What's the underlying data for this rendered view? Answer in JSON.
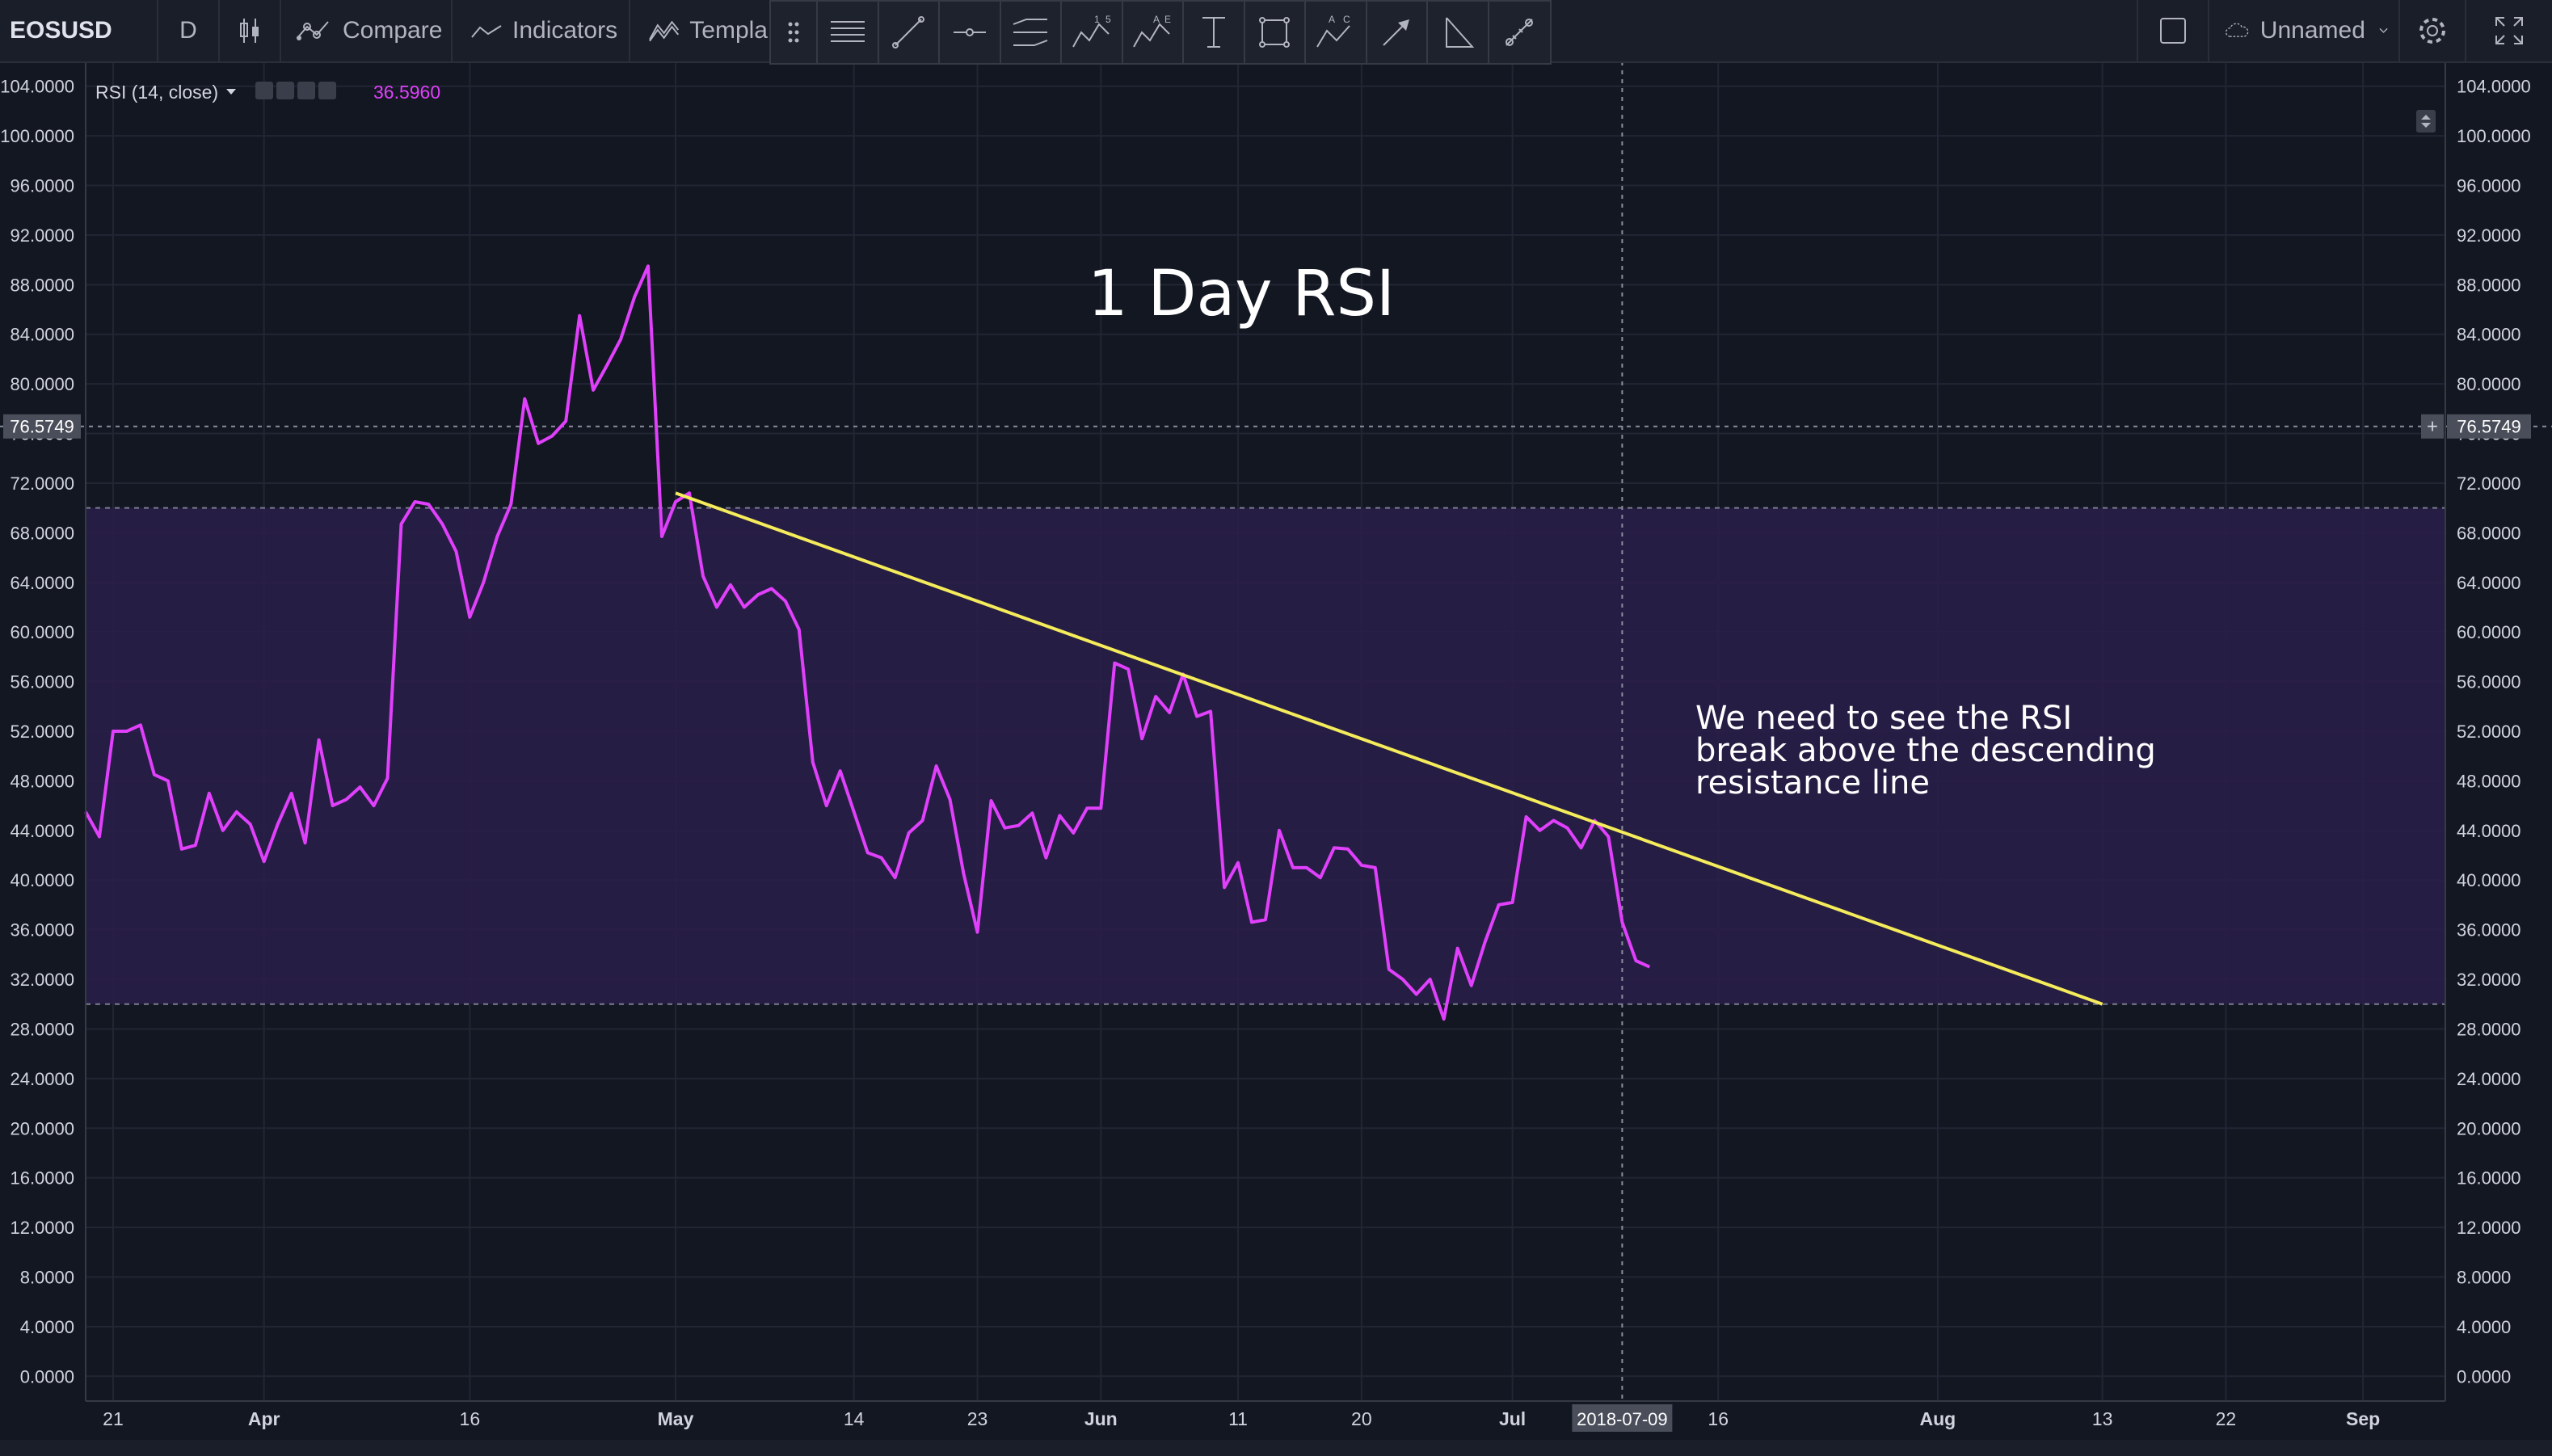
{
  "toolbar": {
    "symbol": "EOSUSD",
    "interval": "D",
    "compare_label": "Compare",
    "indicators_label": "Indicators",
    "templates_label": "Templa",
    "layout_name": "Unnamed",
    "icons": [
      "candles-icon",
      "compare-icon",
      "indicators-icon",
      "templates-icon",
      "square-icon",
      "cloud-icon",
      "gear-icon",
      "fullscreen-icon"
    ]
  },
  "drawing_tools": [
    "drag-handle-icon",
    "horizontal-lines-icon",
    "trend-line-icon",
    "horizontal-ray-icon",
    "parallel-channel-icon",
    "pattern-15-icon",
    "pattern-ae-icon",
    "text-tool-icon",
    "rectangle-icon",
    "pattern-ac-icon",
    "arrow-icon",
    "angle-icon",
    "measure-icon"
  ],
  "legend": {
    "study": "RSI (14, close)",
    "value": "36.5960"
  },
  "crosshair": {
    "price_label": "76.5749",
    "date_label": "2018-07-09"
  },
  "annotations": {
    "title": "1 Day RSI",
    "note": [
      "We need to see the RSI",
      "break above the descending",
      "resistance line"
    ]
  },
  "colors": {
    "background": "#131722",
    "rsi_line": "#e040fb",
    "trend_line": "#f5ec5b",
    "band_fill": "#2a1f4a",
    "legend_value": "#e040fb",
    "grid": "#222634"
  },
  "chart_data": {
    "type": "line",
    "title": "1 Day RSI",
    "xlabel": "",
    "ylabel": "",
    "ylim": [
      -2,
      106
    ],
    "y_ticks": [
      "0.0000",
      "4.0000",
      "8.0000",
      "12.0000",
      "16.0000",
      "20.0000",
      "24.0000",
      "28.0000",
      "32.0000",
      "36.0000",
      "40.0000",
      "44.0000",
      "48.0000",
      "52.0000",
      "56.0000",
      "60.0000",
      "64.0000",
      "68.0000",
      "72.0000",
      "76.0000",
      "80.0000",
      "84.0000",
      "88.0000",
      "92.0000",
      "96.0000",
      "100.0000",
      "104.0000"
    ],
    "x_ticks": [
      {
        "date": "2018-03-21",
        "label": "21"
      },
      {
        "date": "2018-04-01",
        "label": "Apr"
      },
      {
        "date": "2018-04-16",
        "label": "16"
      },
      {
        "date": "2018-05-01",
        "label": "May"
      },
      {
        "date": "2018-05-14",
        "label": "14"
      },
      {
        "date": "2018-05-23",
        "label": "23"
      },
      {
        "date": "2018-06-01",
        "label": "Jun"
      },
      {
        "date": "2018-06-11",
        "label": "11"
      },
      {
        "date": "2018-06-20",
        "label": "20"
      },
      {
        "date": "2018-07-01",
        "label": "Jul"
      },
      {
        "date": "2018-07-16",
        "label": "16"
      },
      {
        "date": "2018-08-01",
        "label": "Aug"
      },
      {
        "date": "2018-08-13",
        "label": "13"
      },
      {
        "date": "2018-08-22",
        "label": "22"
      },
      {
        "date": "2018-09-01",
        "label": "Sep"
      }
    ],
    "xlim": [
      "2018-03-19",
      "2018-09-07"
    ],
    "band": [
      30,
      70
    ],
    "crosshair": {
      "date": "2018-07-09",
      "value": 76.5749
    },
    "trendline": {
      "start": {
        "date": "2018-05-01",
        "value": 71.2
      },
      "end": {
        "date": "2018-08-13",
        "value": 30.0
      }
    },
    "series": [
      {
        "x": [
          "2018-03-19",
          "2018-03-20",
          "2018-03-21",
          "2018-03-22",
          "2018-03-23",
          "2018-03-24",
          "2018-03-25",
          "2018-03-26",
          "2018-03-27",
          "2018-03-28",
          "2018-03-29",
          "2018-03-30",
          "2018-03-31",
          "2018-04-01",
          "2018-04-02",
          "2018-04-03",
          "2018-04-04",
          "2018-04-05",
          "2018-04-06",
          "2018-04-07",
          "2018-04-08",
          "2018-04-09",
          "2018-04-10",
          "2018-04-11",
          "2018-04-12",
          "2018-04-13",
          "2018-04-14",
          "2018-04-15",
          "2018-04-16",
          "2018-04-17",
          "2018-04-18",
          "2018-04-19",
          "2018-04-20",
          "2018-04-21",
          "2018-04-22",
          "2018-04-23",
          "2018-04-24",
          "2018-04-25",
          "2018-04-26",
          "2018-04-27",
          "2018-04-28",
          "2018-04-29",
          "2018-04-30",
          "2018-05-01",
          "2018-05-02",
          "2018-05-03",
          "2018-05-04",
          "2018-05-05",
          "2018-05-06",
          "2018-05-07",
          "2018-05-08",
          "2018-05-09",
          "2018-05-10",
          "2018-05-11",
          "2018-05-12",
          "2018-05-13",
          "2018-05-14",
          "2018-05-15",
          "2018-05-16",
          "2018-05-17",
          "2018-05-18",
          "2018-05-19",
          "2018-05-20",
          "2018-05-21",
          "2018-05-22",
          "2018-05-23",
          "2018-05-24",
          "2018-05-25",
          "2018-05-26",
          "2018-05-27",
          "2018-05-28",
          "2018-05-29",
          "2018-05-30",
          "2018-05-31",
          "2018-06-01",
          "2018-06-02",
          "2018-06-03",
          "2018-06-04",
          "2018-06-05",
          "2018-06-06",
          "2018-06-07",
          "2018-06-08",
          "2018-06-09",
          "2018-06-10",
          "2018-06-11",
          "2018-06-12",
          "2018-06-13",
          "2018-06-14",
          "2018-06-15",
          "2018-06-16",
          "2018-06-17",
          "2018-06-18",
          "2018-06-19",
          "2018-06-20",
          "2018-06-21",
          "2018-06-22",
          "2018-06-23",
          "2018-06-24",
          "2018-06-25",
          "2018-06-26",
          "2018-06-27",
          "2018-06-28",
          "2018-06-29",
          "2018-06-30",
          "2018-07-01",
          "2018-07-02",
          "2018-07-03",
          "2018-07-04",
          "2018-07-05",
          "2018-07-06",
          "2018-07-07",
          "2018-07-08",
          "2018-07-09",
          "2018-07-10",
          "2018-07-11"
        ],
        "values": [
          45.5,
          43.5,
          52.0,
          52.0,
          52.5,
          48.5,
          48.0,
          42.5,
          42.8,
          47.0,
          44.0,
          45.5,
          44.5,
          41.5,
          44.5,
          47.0,
          43.0,
          51.3,
          46.0,
          46.5,
          47.5,
          46.0,
          48.2,
          68.7,
          70.5,
          70.3,
          68.7,
          66.5,
          61.2,
          64.0,
          67.7,
          70.3,
          78.8,
          75.2,
          75.8,
          77.0,
          85.5,
          79.5,
          81.5,
          83.6,
          87.0,
          89.5,
          67.7,
          70.5,
          71.2,
          64.5,
          62.0,
          63.8,
          62.0,
          63.0,
          63.5,
          62.5,
          60.2,
          49.5,
          46.0,
          48.8,
          45.5,
          42.2,
          41.8,
          40.2,
          43.8,
          44.8,
          49.2,
          46.5,
          40.5,
          35.8,
          46.4,
          44.2,
          44.4,
          45.4,
          41.8,
          45.2,
          43.8,
          45.8,
          45.8,
          57.5,
          57.0,
          51.4,
          54.8,
          53.5,
          56.6,
          53.2,
          53.6,
          39.4,
          41.4,
          36.6,
          36.8,
          44.0,
          41.0,
          41.0,
          40.2,
          42.6,
          42.5,
          41.2,
          41.0,
          32.8,
          32.0,
          30.8,
          32.0,
          28.8,
          34.5,
          31.5,
          35.0,
          38.0,
          38.2,
          45.1,
          44.0,
          44.8,
          44.2,
          42.6,
          44.8,
          43.5,
          36.6,
          33.5,
          33.0
        ]
      }
    ]
  }
}
